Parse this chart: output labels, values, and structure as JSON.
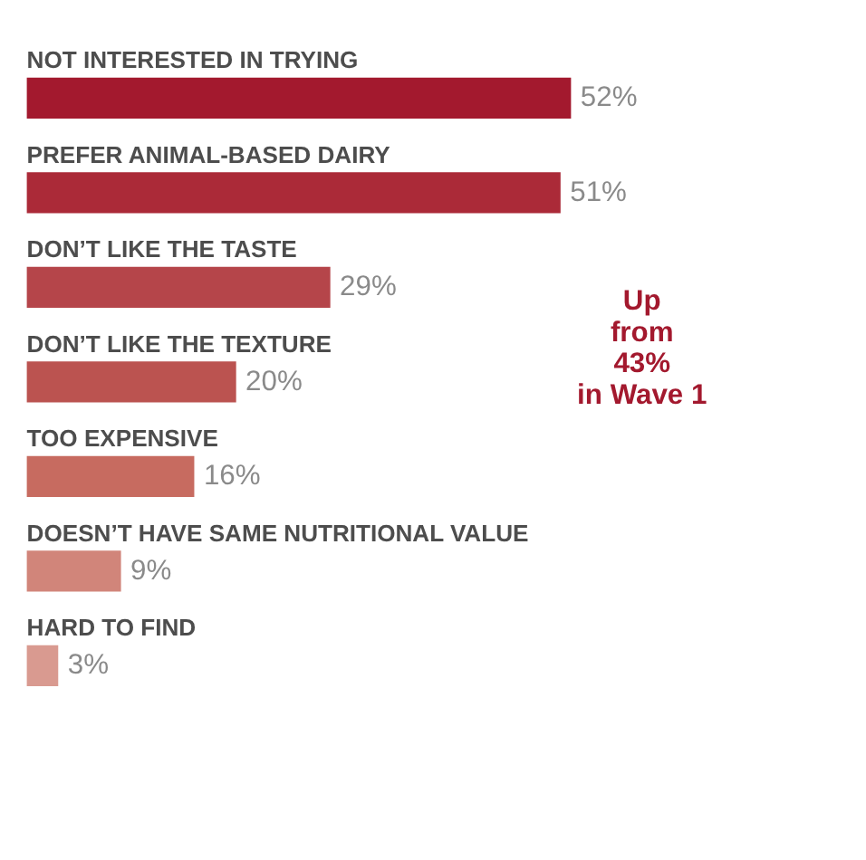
{
  "chart_data": {
    "type": "bar",
    "orientation": "horizontal",
    "categories": [
      "NOT INTERESTED IN TRYING",
      "PREFER ANIMAL-BASED DAIRY",
      "DON’T LIKE THE TASTE",
      "DON’T LIKE THE TEXTURE",
      "TOO EXPENSIVE",
      "DOESN’T HAVE SAME NUTRITIONAL VALUE",
      "HARD TO FIND"
    ],
    "values": [
      52,
      51,
      29,
      20,
      16,
      9,
      3
    ],
    "colors": [
      "#a3192e",
      "#ab2a38",
      "#b5454a",
      "#bb5350",
      "#c76b60",
      "#d1857a",
      "#d99a90"
    ],
    "value_labels": [
      "52%",
      "51%",
      "29%",
      "20%",
      "16%",
      "9%",
      "3%"
    ],
    "annotations": [
      "Up\nfrom\n43%\nin Wave 1"
    ]
  }
}
